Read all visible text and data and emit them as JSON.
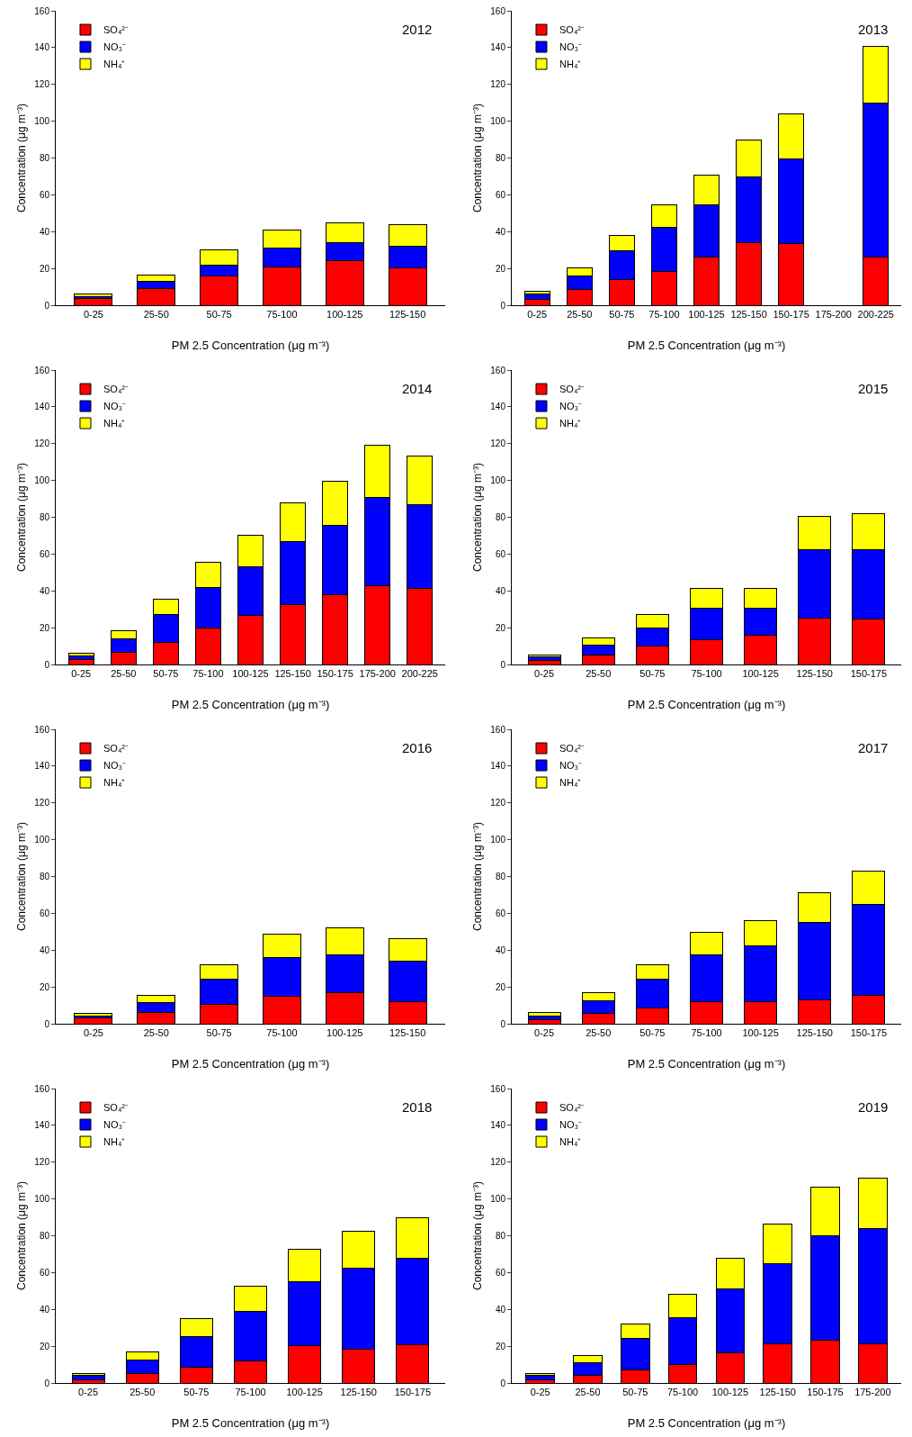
{
  "chart_data": [
    {
      "type": "bar",
      "stacked": true,
      "categories": [
        "0-25",
        "25-50",
        "50-75",
        "75-100",
        "100-125",
        "125-150"
      ],
      "series": [
        {
          "name": "SO₄²⁻",
          "color": "#ff0000",
          "values": [
            3.5,
            9,
            16,
            21,
            24,
            20.5
          ]
        },
        {
          "name": "NO₃⁻",
          "color": "#0000ff",
          "values": [
            1,
            4,
            6,
            10,
            10,
            11.5
          ]
        },
        {
          "name": "NH₄⁺",
          "color": "#ffff00",
          "values": [
            1.5,
            3.5,
            8,
            10,
            11,
            12
          ]
        }
      ],
      "ylim": [
        0,
        160
      ],
      "yticks": [
        0,
        20,
        40,
        60,
        80,
        100,
        120,
        140,
        160
      ],
      "xlabel": "PM 2.5 Concentration (μg m⁻³)",
      "ylabel": "Concentration (μg m⁻³)",
      "annotations": [
        "2012"
      ],
      "legend": "top left",
      "grid": false
    },
    {
      "type": "bar",
      "stacked": true,
      "categories": [
        "0-25",
        "25-50",
        "50-75",
        "75-100",
        "100-125",
        "125-150",
        "150-175",
        "175-200",
        "200-225"
      ],
      "series": [
        {
          "name": "SO₄²⁻",
          "color": "#ff0000",
          "values": [
            3,
            8.5,
            14,
            18.5,
            26,
            34,
            33.5,
            null,
            26
          ]
        },
        {
          "name": "NO₃⁻",
          "color": "#0000ff",
          "values": [
            3,
            7.5,
            15.5,
            24,
            28.5,
            35.5,
            46,
            null,
            84
          ]
        },
        {
          "name": "NH₄⁺",
          "color": "#ffff00",
          "values": [
            1.5,
            4.5,
            8.5,
            12,
            16,
            20.5,
            24.5,
            null,
            30.5
          ]
        }
      ],
      "ylim": [
        0,
        160
      ],
      "yticks": [
        0,
        20,
        40,
        60,
        80,
        100,
        120,
        140,
        160
      ],
      "xlabel": "PM 2.5 Concentration (μg m⁻³)",
      "ylabel": "Concentration (μg m⁻³)",
      "annotations": [
        "2013"
      ],
      "legend": "top left",
      "grid": false
    },
    {
      "type": "bar",
      "stacked": true,
      "categories": [
        "0-25",
        "25-50",
        "50-75",
        "75-100",
        "100-125",
        "125-150",
        "150-175",
        "175-200",
        "200-225"
      ],
      "series": [
        {
          "name": "SO₄²⁻",
          "color": "#ff0000",
          "values": [
            2.5,
            6.5,
            12,
            20,
            26.5,
            32.5,
            38,
            43,
            41.5
          ]
        },
        {
          "name": "NO₃⁻",
          "color": "#0000ff",
          "values": [
            2,
            7.5,
            15,
            22,
            26.5,
            34.5,
            37.5,
            48,
            45.5
          ]
        },
        {
          "name": "NH₄⁺",
          "color": "#ffff00",
          "values": [
            1.5,
            4.5,
            8.5,
            13.5,
            17,
            21,
            24,
            28,
            26.5
          ]
        }
      ],
      "ylim": [
        0,
        160
      ],
      "yticks": [
        0,
        20,
        40,
        60,
        80,
        100,
        120,
        140,
        160
      ],
      "xlabel": "PM 2.5 Concentration (μg m⁻³)",
      "ylabel": "Concentration (μg m⁻³)",
      "annotations": [
        "2014"
      ],
      "legend": "top left",
      "grid": false
    },
    {
      "type": "bar",
      "stacked": true,
      "categories": [
        "0-25",
        "25-50",
        "50-75",
        "75-100",
        "100-125",
        "125-150",
        "150-175"
      ],
      "series": [
        {
          "name": "SO₄²⁻",
          "color": "#ff0000",
          "values": [
            2,
            5,
            10,
            13.5,
            16,
            25,
            24.5
          ]
        },
        {
          "name": "NO₃⁻",
          "color": "#0000ff",
          "values": [
            2,
            5.5,
            10,
            17,
            14.5,
            37.5,
            38
          ]
        },
        {
          "name": "NH₄⁺",
          "color": "#ffff00",
          "values": [
            1,
            4,
            7,
            11,
            11,
            18,
            19.5
          ]
        }
      ],
      "ylim": [
        0,
        160
      ],
      "yticks": [
        0,
        20,
        40,
        60,
        80,
        100,
        120,
        140,
        160
      ],
      "xlabel": "PM 2.5 Concentration (μg m⁻³)",
      "ylabel": "Concentration (μg m⁻³)",
      "annotations": [
        "2015"
      ],
      "legend": "top left",
      "grid": false
    },
    {
      "type": "bar",
      "stacked": true,
      "categories": [
        "0-25",
        "25-50",
        "50-75",
        "75-100",
        "100-125",
        "125-150"
      ],
      "series": [
        {
          "name": "SO₄²⁻",
          "color": "#ff0000",
          "values": [
            3,
            6,
            10.5,
            15,
            17,
            12
          ]
        },
        {
          "name": "NO₃⁻",
          "color": "#0000ff",
          "values": [
            1,
            5.5,
            13.5,
            21,
            20.5,
            22
          ]
        },
        {
          "name": "NH₄⁺",
          "color": "#ffff00",
          "values": [
            1.5,
            4,
            8,
            12.5,
            14.5,
            12
          ]
        }
      ],
      "ylim": [
        0,
        160
      ],
      "yticks": [
        0,
        20,
        40,
        60,
        80,
        100,
        120,
        140,
        160
      ],
      "xlabel": "PM 2.5 Concentration (μg m⁻³)",
      "ylabel": "Concentration (μg m⁻³)",
      "annotations": [
        "2016"
      ],
      "legend": "top left",
      "grid": false
    },
    {
      "type": "bar",
      "stacked": true,
      "categories": [
        "0-25",
        "25-50",
        "50-75",
        "75-100",
        "100-125",
        "125-150",
        "150-175"
      ],
      "series": [
        {
          "name": "SO₄²⁻",
          "color": "#ff0000",
          "values": [
            2,
            5.5,
            8.5,
            12,
            12,
            13,
            15.5
          ]
        },
        {
          "name": "NO₃⁻",
          "color": "#0000ff",
          "values": [
            2,
            7,
            15.5,
            25.5,
            30.5,
            42,
            49.5
          ]
        },
        {
          "name": "NH₄⁺",
          "color": "#ffff00",
          "values": [
            2,
            4.5,
            8,
            12,
            13.5,
            16,
            18
          ]
        }
      ],
      "ylim": [
        0,
        160
      ],
      "yticks": [
        0,
        20,
        40,
        60,
        80,
        100,
        120,
        140,
        160
      ],
      "xlabel": "PM 2.5 Concentration (μg m⁻³)",
      "ylabel": "Concentration (μg m⁻³)",
      "annotations": [
        "2017"
      ],
      "legend": "top left",
      "grid": false
    },
    {
      "type": "bar",
      "stacked": true,
      "categories": [
        "0-25",
        "25-50",
        "50-75",
        "75-100",
        "100-125",
        "125-150",
        "150-175"
      ],
      "series": [
        {
          "name": "SO₄²⁻",
          "color": "#ff0000",
          "values": [
            1.5,
            5,
            8.5,
            12,
            20.5,
            18.5,
            21
          ]
        },
        {
          "name": "NO₃⁻",
          "color": "#0000ff",
          "values": [
            2.5,
            7.5,
            16.5,
            27,
            34.5,
            44,
            47
          ]
        },
        {
          "name": "NH₄⁺",
          "color": "#ffff00",
          "values": [
            1,
            4.5,
            10,
            13.5,
            17.5,
            20,
            22
          ]
        }
      ],
      "ylim": [
        0,
        160
      ],
      "yticks": [
        0,
        20,
        40,
        60,
        80,
        100,
        120,
        140,
        160
      ],
      "xlabel": "PM 2.5 Concentration (μg m⁻³)",
      "ylabel": "Concentration (μg m⁻³)",
      "annotations": [
        "2018"
      ],
      "legend": "top left",
      "grid": false
    },
    {
      "type": "bar",
      "stacked": true,
      "categories": [
        "0-25",
        "25-50",
        "50-75",
        "75-100",
        "100-125",
        "125-150",
        "150-175",
        "175-200"
      ],
      "series": [
        {
          "name": "SO₄²⁻",
          "color": "#ff0000",
          "values": [
            1.5,
            4,
            7,
            10,
            16.5,
            21.5,
            23,
            21.5
          ]
        },
        {
          "name": "NO₃⁻",
          "color": "#0000ff",
          "values": [
            2.5,
            7,
            17,
            25.5,
            34.5,
            43.5,
            57,
            62.5
          ]
        },
        {
          "name": "NH₄⁺",
          "color": "#ffff00",
          "values": [
            1,
            4,
            8,
            12.5,
            17,
            21.5,
            26.5,
            27.5
          ]
        }
      ],
      "ylim": [
        0,
        160
      ],
      "yticks": [
        0,
        20,
        40,
        60,
        80,
        100,
        120,
        140,
        160
      ],
      "xlabel": "PM 2.5 Concentration (μg m⁻³)",
      "ylabel": "Concentration (μg m⁻³)",
      "annotations": [
        "2019"
      ],
      "legend": "top left",
      "grid": false
    }
  ]
}
